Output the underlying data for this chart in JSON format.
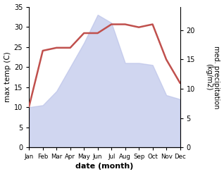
{
  "months": [
    "Jan",
    "Feb",
    "Mar",
    "Apr",
    "May",
    "Jun",
    "Jul",
    "Aug",
    "Sep",
    "Oct",
    "Nov",
    "Dec"
  ],
  "temperature": [
    10,
    10.5,
    14,
    20,
    26,
    33,
    31,
    21,
    21,
    20.5,
    13,
    12
  ],
  "precipitation": [
    7,
    16.5,
    17,
    17,
    19.5,
    19.5,
    21,
    21,
    20.5,
    21,
    15,
    11
  ],
  "fill_color": "#b8c0e8",
  "fill_alpha": 0.65,
  "precip_color": "#c0504d",
  "ylabel_left": "max temp (C)",
  "ylabel_right": "med. precipitation\n(kg/m2)",
  "xlabel": "date (month)",
  "ylim_left": [
    0,
    35
  ],
  "ylim_right": [
    0,
    24
  ],
  "yticks_left": [
    0,
    5,
    10,
    15,
    20,
    25,
    30,
    35
  ],
  "yticks_right": [
    0,
    5,
    10,
    15,
    20
  ],
  "background_color": "#ffffff"
}
